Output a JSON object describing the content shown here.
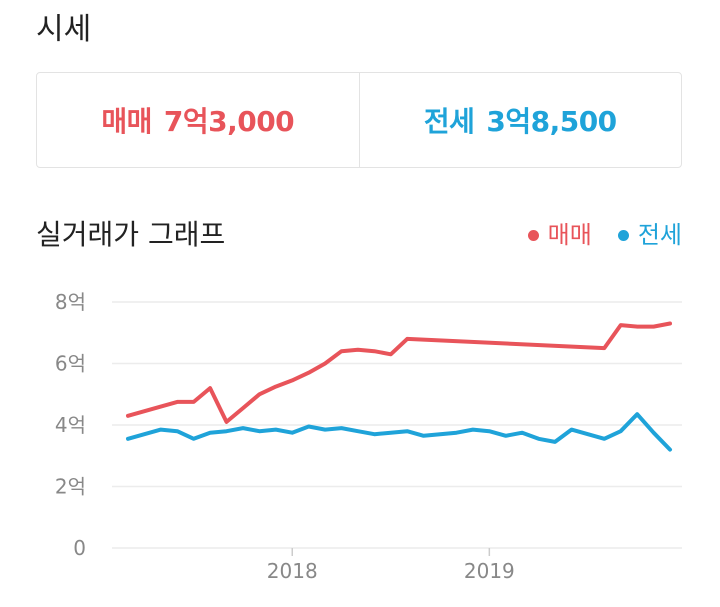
{
  "header": {
    "title": "시세"
  },
  "prices": {
    "sale": {
      "label": "매매",
      "value": "7억3,000"
    },
    "jeonse": {
      "label": "전세",
      "value": "3억8,500"
    }
  },
  "chart_section": {
    "title": "실거래가 그래프"
  },
  "colors": {
    "sale": "#e8545a",
    "jeonse": "#1fa3d9",
    "grid": "#ececec",
    "axis_text": "#888888"
  },
  "chart_data": {
    "type": "line",
    "title": "실거래가 그래프",
    "xlabel": "",
    "ylabel": "",
    "ylim": [
      0,
      8
    ],
    "yticks": [
      {
        "value": 0,
        "label": "0"
      },
      {
        "value": 2,
        "label": "2억"
      },
      {
        "value": 4,
        "label": "4억"
      },
      {
        "value": 6,
        "label": "6억"
      },
      {
        "value": 8,
        "label": "8억"
      }
    ],
    "xlim": [
      "2017-03",
      "2019-12"
    ],
    "xticks": [
      {
        "value": "2018-01",
        "label": "2018"
      },
      {
        "value": "2019-01",
        "label": "2019"
      }
    ],
    "grid": true,
    "legend_position": "top-right",
    "series": [
      {
        "name": "매매",
        "color": "#e8545a",
        "points": [
          [
            "2017-03",
            4.3
          ],
          [
            "2017-04",
            4.45
          ],
          [
            "2017-05",
            4.6
          ],
          [
            "2017-06",
            4.75
          ],
          [
            "2017-07",
            4.75
          ],
          [
            "2017-08",
            5.2
          ],
          [
            "2017-09",
            4.1
          ],
          [
            "2017-10",
            4.55
          ],
          [
            "2017-11",
            5.0
          ],
          [
            "2017-12",
            5.25
          ],
          [
            "2018-01",
            5.45
          ],
          [
            "2018-02",
            5.7
          ],
          [
            "2018-03",
            6.0
          ],
          [
            "2018-04",
            6.4
          ],
          [
            "2018-05",
            6.45
          ],
          [
            "2018-06",
            6.4
          ],
          [
            "2018-07",
            6.3
          ],
          [
            "2018-08",
            6.8
          ],
          [
            "2019-08",
            6.5
          ],
          [
            "2019-09",
            7.25
          ],
          [
            "2019-10",
            7.2
          ],
          [
            "2019-11",
            7.2
          ],
          [
            "2019-12",
            7.3
          ]
        ]
      },
      {
        "name": "전세",
        "color": "#1fa3d9",
        "points": [
          [
            "2017-03",
            3.55
          ],
          [
            "2017-04",
            3.7
          ],
          [
            "2017-05",
            3.85
          ],
          [
            "2017-06",
            3.8
          ],
          [
            "2017-07",
            3.55
          ],
          [
            "2017-08",
            3.75
          ],
          [
            "2017-09",
            3.8
          ],
          [
            "2017-10",
            3.9
          ],
          [
            "2017-11",
            3.8
          ],
          [
            "2017-12",
            3.85
          ],
          [
            "2018-01",
            3.75
          ],
          [
            "2018-02",
            3.95
          ],
          [
            "2018-03",
            3.85
          ],
          [
            "2018-04",
            3.9
          ],
          [
            "2018-05",
            3.8
          ],
          [
            "2018-06",
            3.7
          ],
          [
            "2018-07",
            3.75
          ],
          [
            "2018-08",
            3.8
          ],
          [
            "2018-09",
            3.65
          ],
          [
            "2018-10",
            3.7
          ],
          [
            "2018-11",
            3.75
          ],
          [
            "2018-12",
            3.85
          ],
          [
            "2019-01",
            3.8
          ],
          [
            "2019-02",
            3.65
          ],
          [
            "2019-03",
            3.75
          ],
          [
            "2019-04",
            3.55
          ],
          [
            "2019-05",
            3.45
          ],
          [
            "2019-06",
            3.85
          ],
          [
            "2019-07",
            3.7
          ],
          [
            "2019-08",
            3.55
          ],
          [
            "2019-09",
            3.8
          ],
          [
            "2019-10",
            4.35
          ],
          [
            "2019-11",
            3.75
          ],
          [
            "2019-12",
            3.2
          ]
        ]
      }
    ]
  }
}
